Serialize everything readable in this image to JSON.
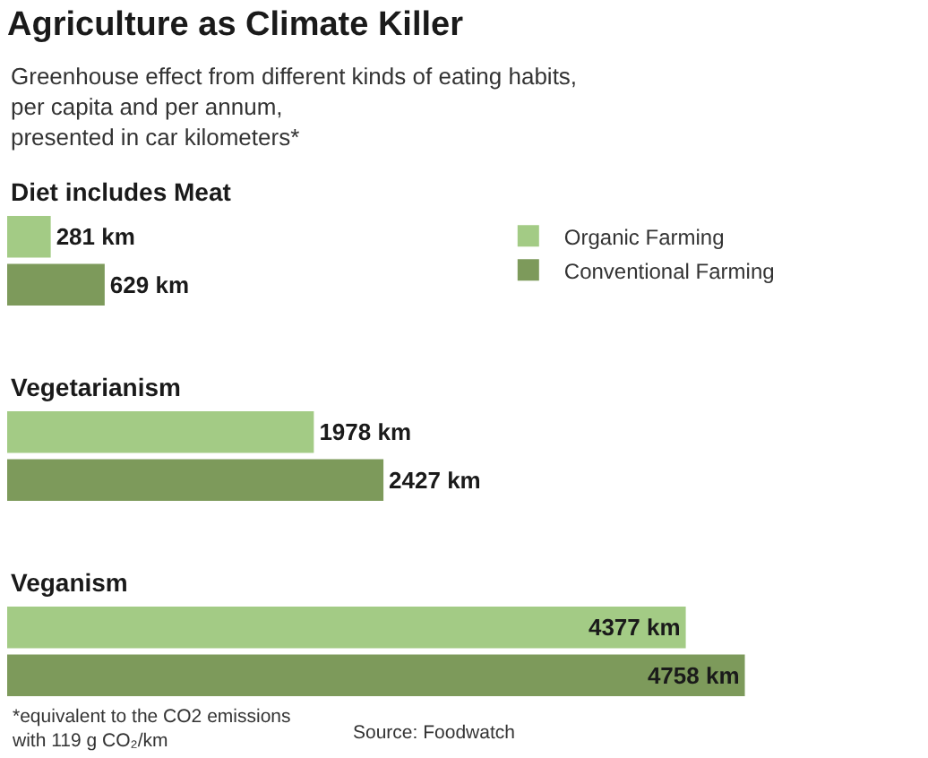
{
  "chart_data": {
    "type": "bar",
    "orientation": "horizontal",
    "title": "Agriculture as Climate Killer",
    "subtitle": "Greenhouse effect from different kinds of eating habits, per capita and per annum, presented in car kilometers*",
    "categories": [
      "Diet includes Meat",
      "Vegetarianism",
      "Veganism"
    ],
    "series": [
      {
        "name": "Organic Farming",
        "color": "#a3cb85",
        "values": [
          281,
          1978,
          4377
        ],
        "value_labels": [
          "281 km",
          "1978 km",
          "4377 km"
        ]
      },
      {
        "name": "Conventional Farming",
        "color": "#7d9a5b",
        "values": [
          629,
          2427,
          4758
        ],
        "value_labels": [
          "629 km",
          "2427 km",
          "4758 km"
        ]
      }
    ],
    "legend": "top right",
    "annotations": [
      "*equivalent to the CO2 emissions with 119 g CO₂/km",
      "Source: Foodwatch"
    ]
  }
}
